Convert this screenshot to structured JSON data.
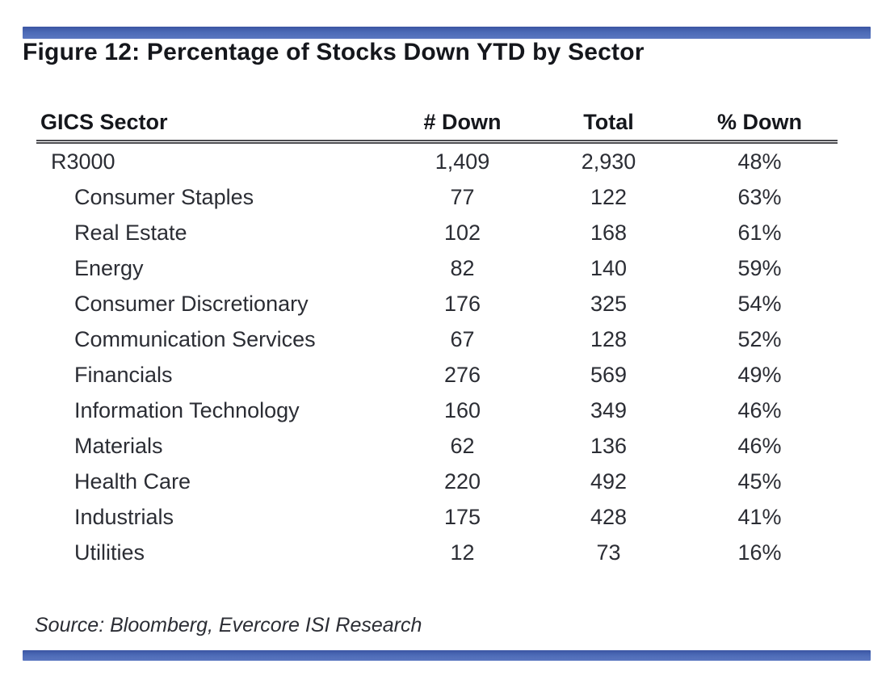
{
  "page": {
    "background": "#ffffff",
    "accent_color": "#4c6ab6",
    "text_color": "#2b2d34"
  },
  "figure": {
    "title": "Figure 12: Percentage of Stocks Down YTD by Sector",
    "source": "Source: Bloomberg, Evercore ISI Research"
  },
  "table": {
    "columns": [
      "GICS Sector",
      "# Down",
      "Total",
      "% Down"
    ],
    "rows": [
      {
        "sector": "R3000",
        "down": "1,409",
        "total": "2,930",
        "pct_down": "48%",
        "indent": false
      },
      {
        "sector": "Consumer Staples",
        "down": "77",
        "total": "122",
        "pct_down": "63%",
        "indent": true
      },
      {
        "sector": "Real Estate",
        "down": "102",
        "total": "168",
        "pct_down": "61%",
        "indent": true
      },
      {
        "sector": "Energy",
        "down": "82",
        "total": "140",
        "pct_down": "59%",
        "indent": true
      },
      {
        "sector": "Consumer Discretionary",
        "down": "176",
        "total": "325",
        "pct_down": "54%",
        "indent": true
      },
      {
        "sector": "Communication Services",
        "down": "67",
        "total": "128",
        "pct_down": "52%",
        "indent": true
      },
      {
        "sector": "Financials",
        "down": "276",
        "total": "569",
        "pct_down": "49%",
        "indent": true
      },
      {
        "sector": "Information Technology",
        "down": "160",
        "total": "349",
        "pct_down": "46%",
        "indent": true
      },
      {
        "sector": "Materials",
        "down": "62",
        "total": "136",
        "pct_down": "46%",
        "indent": true
      },
      {
        "sector": "Health Care",
        "down": "220",
        "total": "492",
        "pct_down": "45%",
        "indent": true
      },
      {
        "sector": "Industrials",
        "down": "175",
        "total": "428",
        "pct_down": "41%",
        "indent": true
      },
      {
        "sector": "Utilities",
        "down": "12",
        "total": "73",
        "pct_down": "16%",
        "indent": true
      }
    ]
  },
  "chart_data": {
    "type": "table",
    "title": "Figure 12: Percentage of Stocks Down YTD by Sector",
    "columns": [
      "GICS Sector",
      "# Down",
      "Total",
      "% Down"
    ],
    "rows": [
      [
        "R3000",
        1409,
        2930,
        "48%"
      ],
      [
        "Consumer Staples",
        77,
        122,
        "63%"
      ],
      [
        "Real Estate",
        102,
        168,
        "61%"
      ],
      [
        "Energy",
        82,
        140,
        "59%"
      ],
      [
        "Consumer Discretionary",
        176,
        325,
        "54%"
      ],
      [
        "Communication Services",
        67,
        128,
        "52%"
      ],
      [
        "Financials",
        276,
        569,
        "49%"
      ],
      [
        "Information Technology",
        160,
        349,
        "46%"
      ],
      [
        "Materials",
        62,
        136,
        "46%"
      ],
      [
        "Health Care",
        220,
        492,
        "45%"
      ],
      [
        "Industrials",
        175,
        428,
        "41%"
      ],
      [
        "Utilities",
        12,
        73,
        "16%"
      ]
    ],
    "source": "Source: Bloomberg, Evercore ISI Research"
  }
}
